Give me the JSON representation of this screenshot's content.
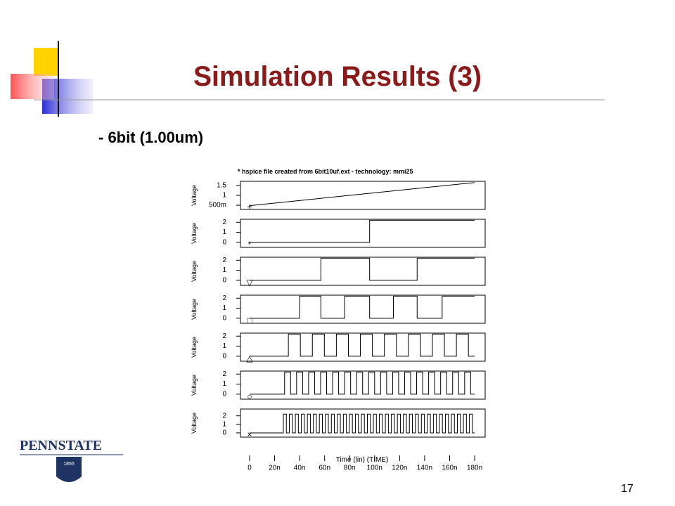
{
  "slide": {
    "title": "Simulation Results (3)",
    "subtitle": "- 6bit (1.00um)",
    "page_number": "17"
  },
  "logo": {
    "name": "PENNSTATE",
    "year": "1855"
  },
  "plot": {
    "header": "* hspice file created from 6bit10uf.ext - technology: mmi25",
    "xlabel": "Time (lin) (TIME)"
  },
  "chart_data": [
    {
      "type": "line",
      "ylabel": "Voltage",
      "x": [
        0,
        180
      ],
      "values": [
        0.48,
        1.65
      ],
      "ylim": [
        0.29,
        1.71
      ],
      "yticks": [
        {
          "value": 0.5,
          "label": "500m"
        },
        1,
        1.5
      ]
    },
    {
      "type": "step",
      "ylabel": "Voltage",
      "x": [
        0,
        96
      ],
      "values": [
        0,
        2.2
      ],
      "ylim": [
        -0.5,
        2.3
      ],
      "yticks": [
        0,
        1,
        2
      ]
    },
    {
      "type": "step",
      "ylabel": "Voltage",
      "x": [
        0,
        57,
        96,
        134
      ],
      "values": [
        0,
        2.2,
        0,
        2.2
      ],
      "ylim": [
        -0.5,
        2.3
      ],
      "yticks": [
        0,
        1,
        2
      ]
    },
    {
      "type": "step",
      "ylabel": "Voltage",
      "x": [
        0,
        40,
        57,
        76,
        96,
        115,
        134,
        154
      ],
      "values": [
        0,
        2.2,
        0,
        2.2,
        0,
        2.2,
        0,
        2.2
      ],
      "ylim": [
        -0.5,
        2.3
      ],
      "yticks": [
        0,
        1,
        2
      ]
    },
    {
      "type": "step",
      "ylabel": "Voltage",
      "x": [
        0,
        31,
        40.6,
        50.2,
        59.8,
        69.4,
        79,
        88.6,
        98.2,
        107.8,
        117.4,
        127,
        136.6,
        146.2,
        155.8,
        165.4,
        175
      ],
      "values": [
        0,
        2.2,
        0,
        2.2,
        0,
        2.2,
        0,
        2.2,
        0,
        2.2,
        0,
        2.2,
        0,
        2.2,
        0,
        2.2,
        0
      ],
      "ylim": [
        -0.5,
        2.3
      ],
      "yticks": [
        0,
        1,
        2
      ]
    },
    {
      "type": "step",
      "ylabel": "Voltage",
      "x": [
        0,
        28,
        32.8,
        37.6,
        42.4,
        47.2,
        52,
        56.8,
        61.6,
        66.4,
        71.2,
        76,
        80.8,
        85.6,
        90.4,
        95.2,
        100,
        104.8,
        109.6,
        114.4,
        119.2,
        124,
        128.8,
        133.6,
        138.4,
        143.2,
        148,
        152.8,
        157.6,
        162.4,
        167.2,
        172,
        176.8
      ],
      "values": [
        0,
        2.2,
        0,
        2.2,
        0,
        2.2,
        0,
        2.2,
        0,
        2.2,
        0,
        2.2,
        0,
        2.2,
        0,
        2.2,
        0,
        2.2,
        0,
        2.2,
        0,
        2.2,
        0,
        2.2,
        0,
        2.2,
        0,
        2.2,
        0,
        2.2,
        0,
        2.2,
        0
      ],
      "ylim": [
        -0.5,
        2.3
      ],
      "yticks": [
        0,
        1,
        2
      ]
    },
    {
      "type": "step",
      "ylabel": "Voltage",
      "x": [
        0,
        27,
        29.4,
        31.8,
        34.2,
        36.6,
        39,
        41.4,
        43.8,
        46.2,
        48.6,
        51,
        53.4,
        55.8,
        58.2,
        60.6,
        63,
        65.4,
        67.8,
        70.2,
        72.6,
        75,
        77.4,
        79.8,
        82.2,
        84.6,
        87,
        89.4,
        91.8,
        94.2,
        96.6,
        99,
        101.4,
        103.8,
        106.2,
        108.6,
        111,
        113.4,
        115.8,
        118.2,
        120.6,
        123,
        125.4,
        127.8,
        130.2,
        132.6,
        135,
        137.4,
        139.8,
        142.2,
        144.6,
        147,
        149.4,
        151.8,
        154.2,
        156.6,
        159,
        161.4,
        163.8,
        166.2,
        168.6,
        171,
        173.4,
        175.8,
        178.2
      ],
      "values": [
        0,
        2.2,
        0,
        2.2,
        0,
        2.2,
        0,
        2.2,
        0,
        2.2,
        0,
        2.2,
        0,
        2.2,
        0,
        2.2,
        0,
        2.2,
        0,
        2.2,
        0,
        2.2,
        0,
        2.2,
        0,
        2.2,
        0,
        2.2,
        0,
        2.2,
        0,
        2.2,
        0,
        2.2,
        0,
        2.2,
        0,
        2.2,
        0,
        2.2,
        0,
        2.2,
        0,
        2.2,
        0,
        2.2,
        0,
        2.2,
        0,
        2.2,
        0,
        2.2,
        0,
        2.2,
        0,
        2.2,
        0,
        2.2,
        0,
        2.2,
        0,
        2.2,
        0,
        2.2,
        0
      ],
      "ylim": [
        -0.5,
        2.8
      ],
      "yticks": [
        0,
        1,
        2
      ],
      "xlim": [
        -7.3,
        188.4
      ],
      "xticks": [
        0,
        {
          "value": 20,
          "label": "20n"
        },
        {
          "value": 40,
          "label": "40n"
        },
        {
          "value": 60,
          "label": "60n"
        },
        {
          "value": 80,
          "label": "80n"
        },
        {
          "value": 100,
          "label": "100n"
        },
        {
          "value": 120,
          "label": "120n"
        },
        {
          "value": 140,
          "label": "140n"
        },
        {
          "value": 160,
          "label": "160n"
        },
        {
          "value": 180,
          "label": "180n"
        }
      ]
    }
  ]
}
